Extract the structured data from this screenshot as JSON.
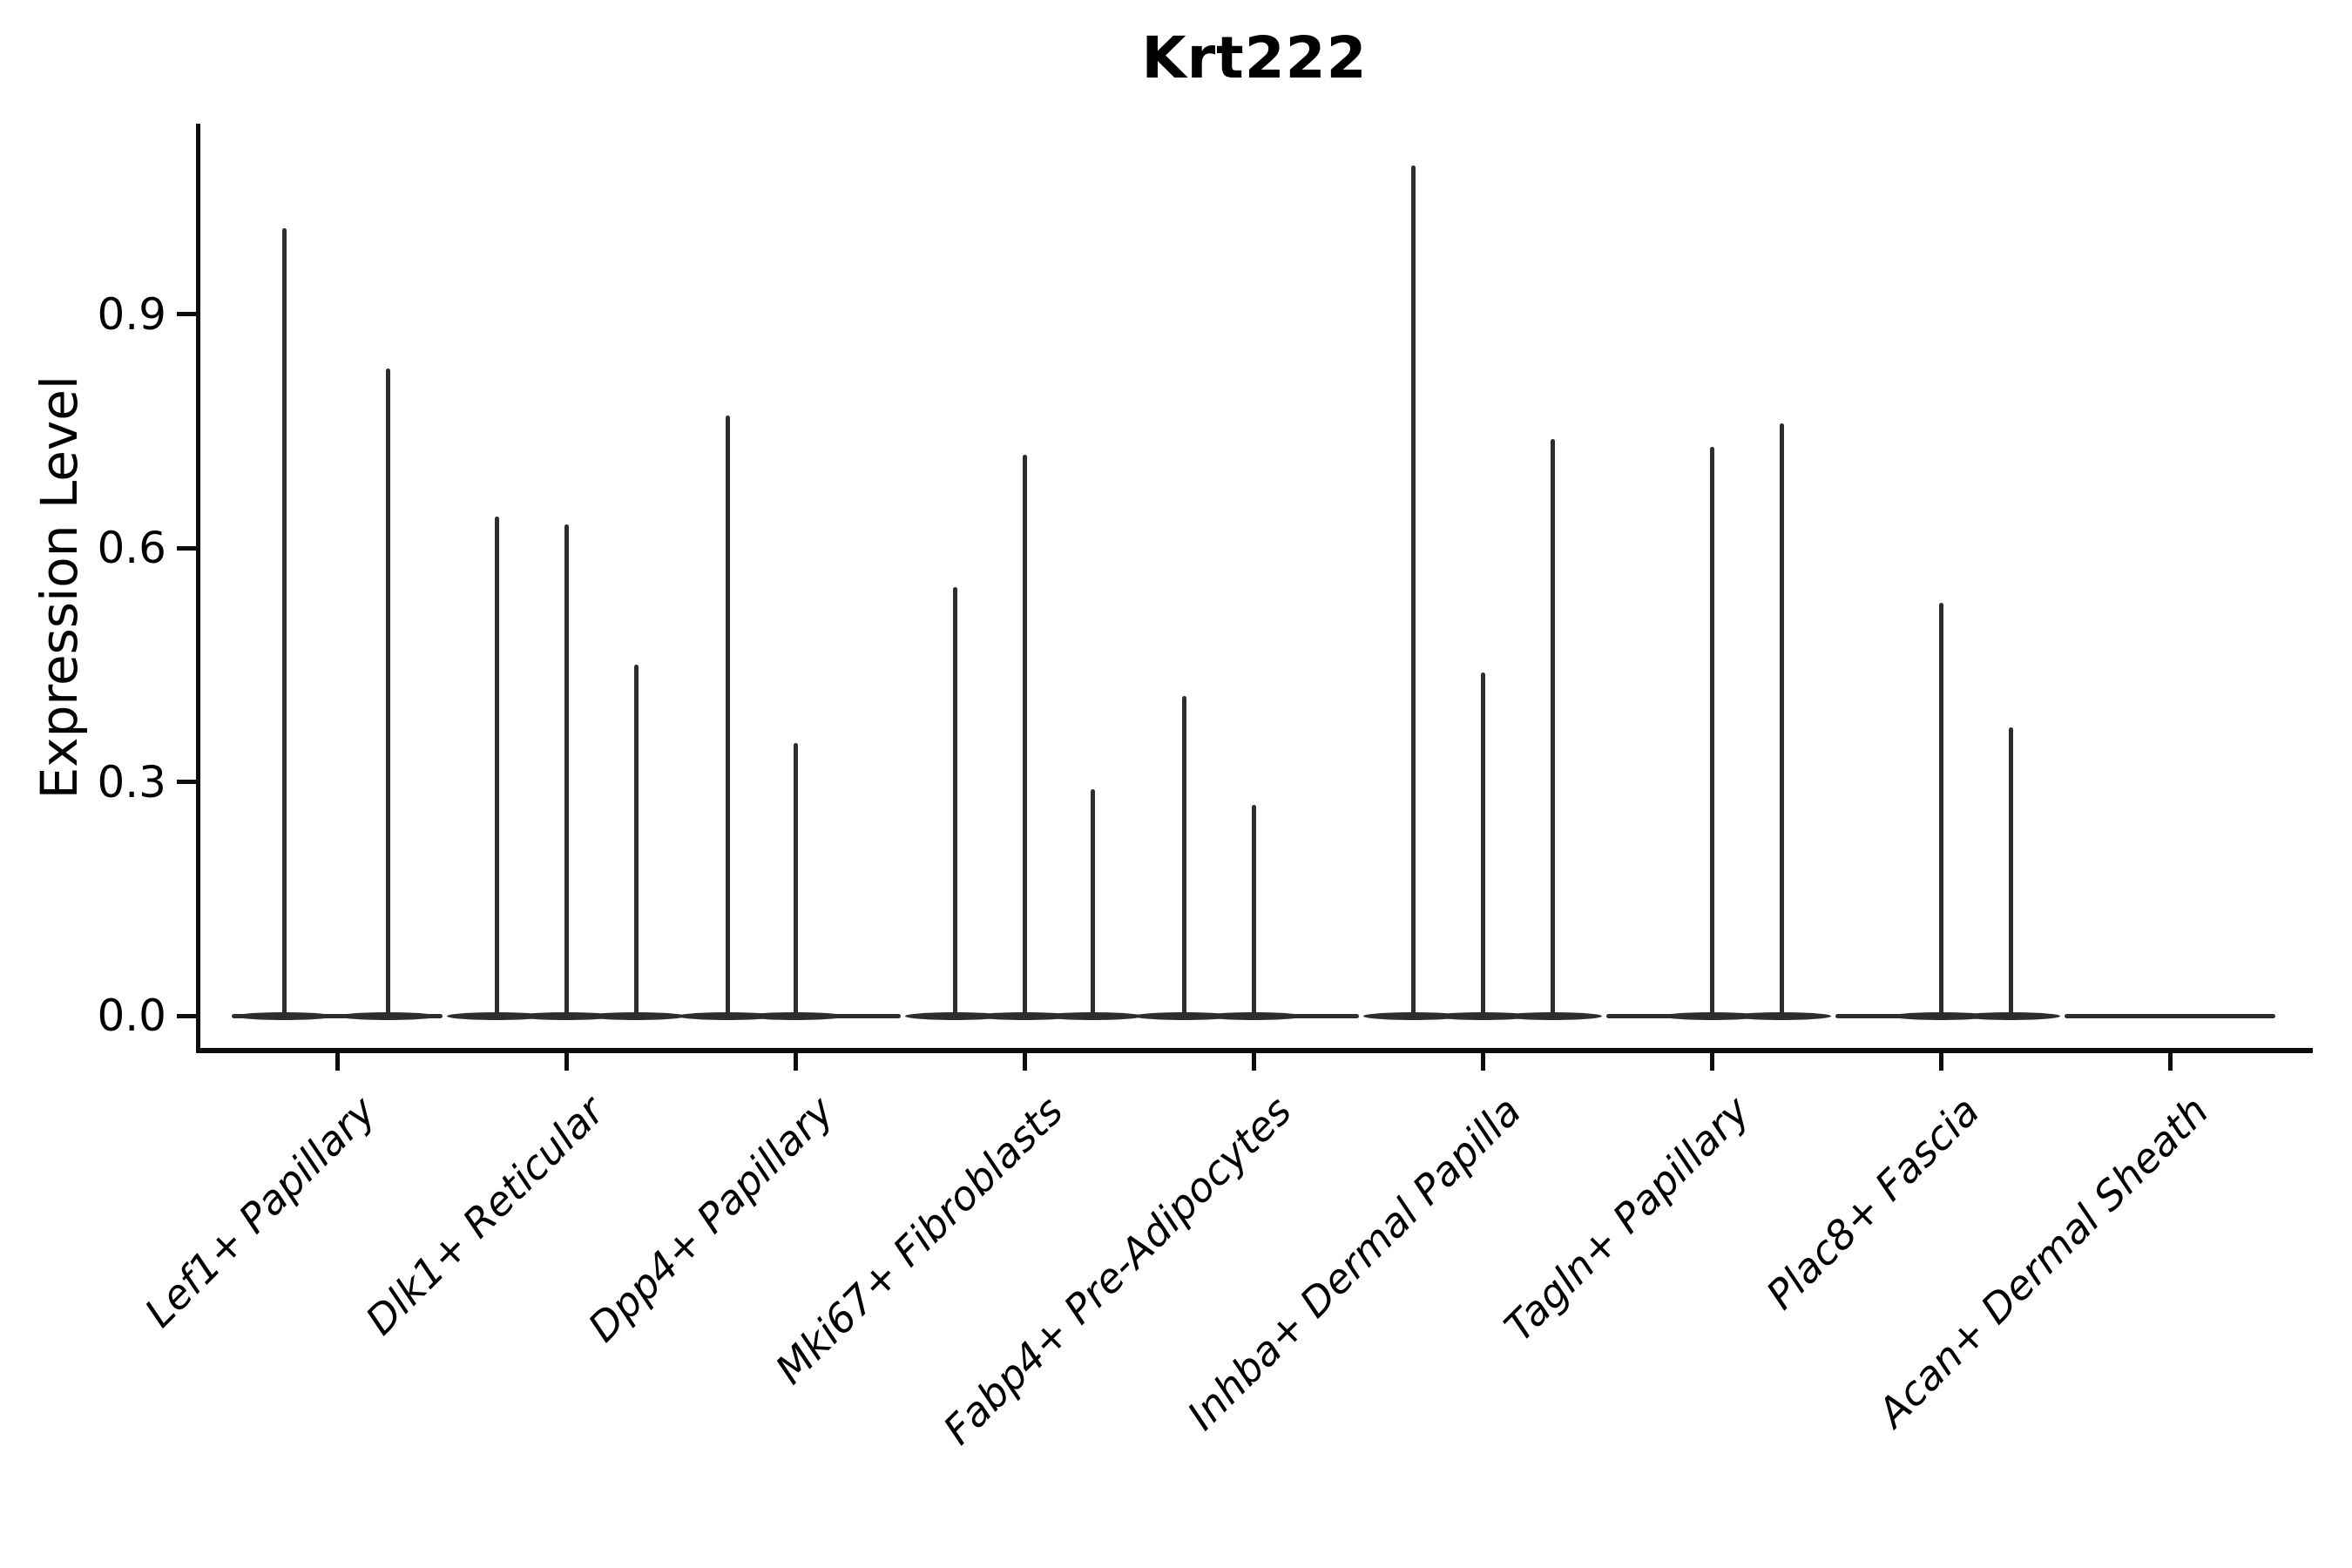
{
  "chart_data": {
    "type": "violin",
    "title": "Krt222",
    "ylabel": "Expression Level",
    "xlabel": "",
    "y_ticks": [
      0.0,
      0.3,
      0.6,
      0.9
    ],
    "ylim": [
      -0.05,
      1.19
    ],
    "grid": false,
    "legend": null,
    "categories": [
      "Lef1+ Papillary",
      "Dlk1+ Reticular",
      "Dpp4+ Papillary",
      "Mki67+ Fibroblasts",
      "Fabp4+ Pre-Adipocytes",
      "Inhba+ Dermal Papilla",
      "Tagln+ Papillary",
      "Plac8+ Fascia",
      "Acan+ Dermal Sheath"
    ],
    "series": [
      {
        "category": "Lef1+ Papillary",
        "spikes": [
          {
            "dx": -61,
            "value": 1.01
          },
          {
            "dx": 58,
            "value": 0.83
          }
        ]
      },
      {
        "category": "Dlk1+ Reticular",
        "spikes": [
          {
            "dx": -80,
            "value": 0.64
          },
          {
            "dx": 0,
            "value": 0.63
          },
          {
            "dx": 80,
            "value": 0.45
          }
        ]
      },
      {
        "category": "Dpp4+ Papillary",
        "spikes": [
          {
            "dx": -78,
            "value": 0.77
          },
          {
            "dx": 0,
            "value": 0.35
          }
        ]
      },
      {
        "category": "Mki67+ Fibroblasts",
        "spikes": [
          {
            "dx": -80,
            "value": 0.55
          },
          {
            "dx": 0,
            "value": 0.72
          },
          {
            "dx": 78,
            "value": 0.29
          }
        ]
      },
      {
        "category": "Fabp4+ Pre-Adipocytes",
        "spikes": [
          {
            "dx": -80,
            "value": 0.41
          },
          {
            "dx": 0,
            "value": 0.27
          }
        ]
      },
      {
        "category": "Inhba+ Dermal Papilla",
        "spikes": [
          {
            "dx": -80,
            "value": 1.09
          },
          {
            "dx": 0,
            "value": 0.44
          },
          {
            "dx": 80,
            "value": 0.74
          }
        ]
      },
      {
        "category": "Tagln+ Papillary",
        "spikes": [
          {
            "dx": 0,
            "value": 0.73
          },
          {
            "dx": 80,
            "value": 0.76
          }
        ]
      },
      {
        "category": "Plac8+ Fascia",
        "spikes": [
          {
            "dx": 0,
            "value": 0.53
          },
          {
            "dx": 80,
            "value": 0.37
          }
        ]
      },
      {
        "category": "Acan+ Dermal Sheath",
        "spikes": []
      }
    ],
    "colors": {
      "violin": "#2d2d2d",
      "axis": "#0d0d0d",
      "text": "#000000"
    }
  }
}
